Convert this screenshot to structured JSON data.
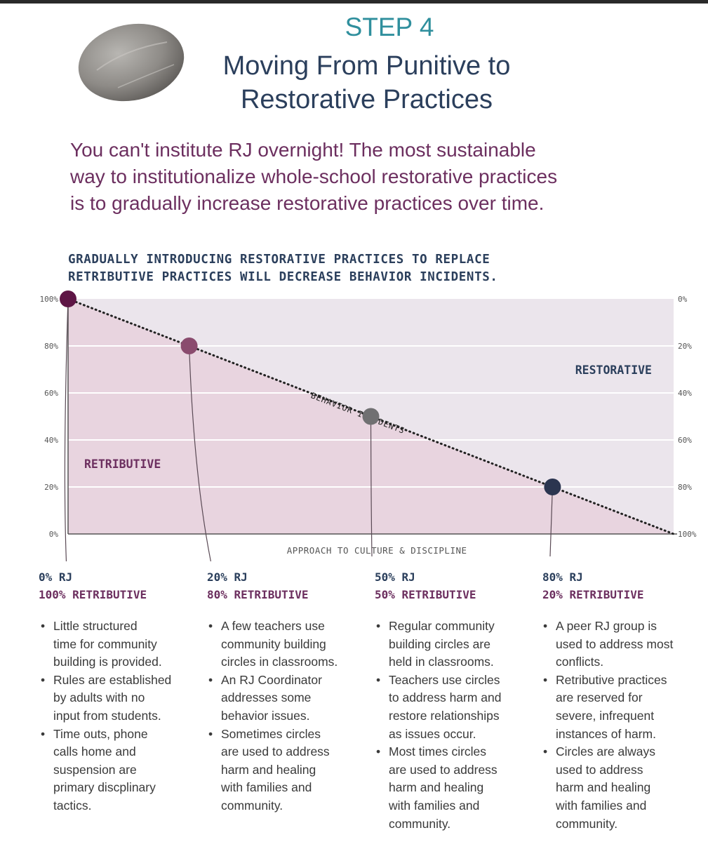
{
  "header": {
    "step": "STEP 4",
    "title_line1": "Moving From Punitive to",
    "title_line2": "Restorative Practices",
    "intro_line1": "You can't institute RJ overnight! The most sustainable",
    "intro_line2": "way to institutionalize whole-school restorative practices",
    "intro_line3": "is to gradually increase restorative practices over time."
  },
  "chart_data": {
    "type": "area",
    "title_line1": "GRADUALLY INTRODUCING RESTORATIVE PRACTICES TO REPLACE",
    "title_line2": "RETRIBUTIVE PRACTICES WILL DECREASE BEHAVIOR INCIDENTS.",
    "xlabel": "APPROACH TO CULTURE & DISCIPLINE",
    "left_ticks": [
      "0%",
      "20%",
      "40%",
      "60%",
      "80%",
      "100%"
    ],
    "right_ticks": [
      "100%",
      "80%",
      "60%",
      "40%",
      "20%",
      "0%"
    ],
    "ylim": [
      0,
      100
    ],
    "xlim": [
      0,
      100
    ],
    "region_labels": {
      "lower": "RETRIBUTIVE",
      "upper": "RESTORATIVE"
    },
    "boundary": {
      "x": [
        0,
        100
      ],
      "y": [
        100,
        0
      ]
    },
    "series": [
      {
        "name": "BEHAVIOR INCIDENTS",
        "x": [
          0,
          100
        ],
        "y": [
          100,
          0
        ]
      }
    ],
    "points": [
      {
        "x": 0,
        "y": 100,
        "color": "#5e1545"
      },
      {
        "x": 20,
        "y": 80,
        "color": "#8a4b6e"
      },
      {
        "x": 50,
        "y": 50,
        "color": "#707072"
      },
      {
        "x": 80,
        "y": 20,
        "color": "#2b3550"
      }
    ],
    "colors": {
      "retributive": "#e8d4df",
      "restorative": "#ebe5ec",
      "grid": "#ffffff",
      "axis": "#555555"
    }
  },
  "columns": [
    {
      "head1": "0% RJ",
      "head2": "100% RETRIBUTIVE",
      "lines": [
        [
          "Little structured",
          "time for community",
          "building is provided."
        ],
        [
          "Rules are established",
          "by adults with no",
          "input from students."
        ],
        [
          "Time outs, phone",
          "calls home and",
          "suspension are",
          "primary discplinary",
          "tactics."
        ]
      ]
    },
    {
      "head1": "20% RJ",
      "head2": "80% RETRIBUTIVE",
      "lines": [
        [
          "A few teachers use",
          "community building",
          "circles in classrooms."
        ],
        [
          "An RJ Coordinator",
          "addresses some",
          "behavior issues."
        ],
        [
          "Sometimes circles",
          "are used to address",
          "harm and healing",
          "with families and",
          "community."
        ]
      ]
    },
    {
      "head1": "50% RJ",
      "head2": "50% RETRIBUTIVE",
      "lines": [
        [
          "Regular community",
          "building circles are",
          "held in classrooms."
        ],
        [
          "Teachers use circles",
          "to address harm and",
          "restore relationships",
          "as issues occur."
        ],
        [
          "Most times circles",
          "are used to address",
          "harm and healing",
          "with families and",
          "community."
        ]
      ]
    },
    {
      "head1": "80% RJ",
      "head2": "20% RETRIBUTIVE",
      "lines": [
        [
          "A peer RJ group is",
          "used to address most",
          "conflicts."
        ],
        [
          "Retributive practices",
          "are reserved for",
          "severe, infrequent",
          "instances of harm."
        ],
        [
          "Circles are always",
          "used to address",
          "harm and healing",
          "with families and",
          "community."
        ]
      ]
    }
  ]
}
